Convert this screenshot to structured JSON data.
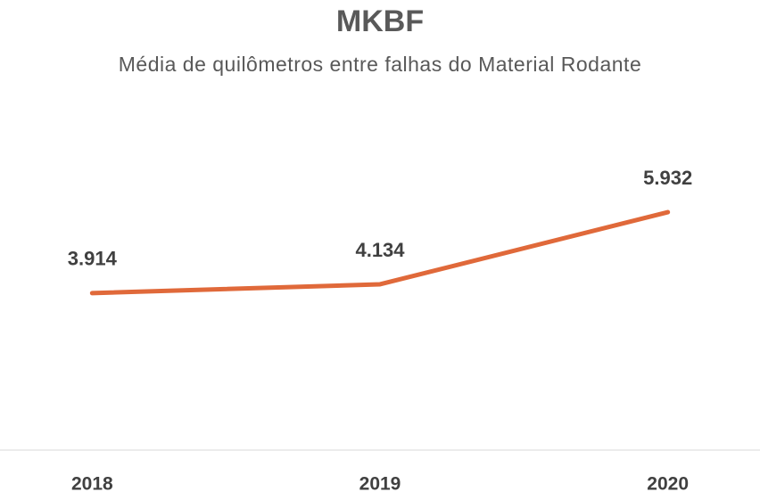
{
  "chart_data": {
    "type": "line",
    "title": "MKBF",
    "subtitle": "Média de quilômetros entre falhas do Material Rodante",
    "categories": [
      "2018",
      "2019",
      "2020"
    ],
    "values": [
      3914,
      4134,
      5932
    ],
    "value_labels": [
      "3.914",
      "4.134",
      "5.932"
    ],
    "color": "#e0693a",
    "ylim": [
      0,
      7000
    ]
  }
}
